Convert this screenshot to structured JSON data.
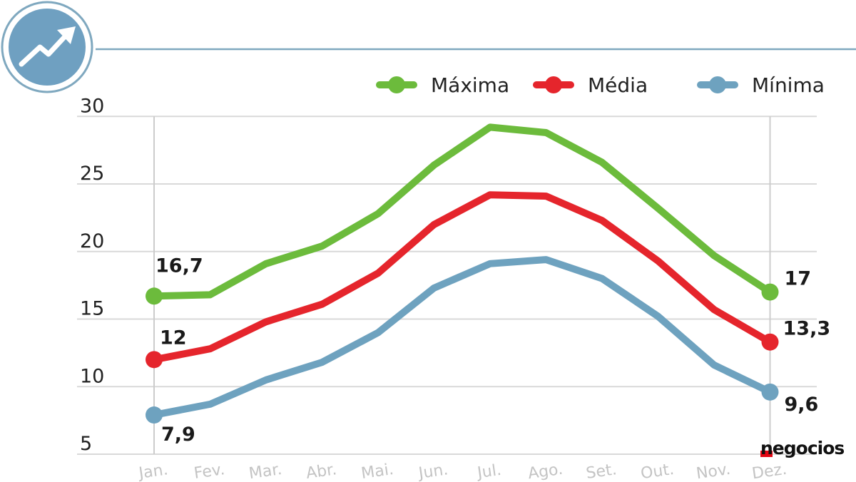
{
  "brand": {
    "name": "negocios",
    "accent_color": "#e30613"
  },
  "header": {
    "icon": "trend-up-arrow-icon",
    "badge_color": "#6fa0c1",
    "rule_color": "#7fa8bf"
  },
  "chart_data": {
    "type": "line",
    "title": "",
    "xlabel": "",
    "ylabel": "",
    "categories": [
      "Jan.",
      "Fev.",
      "Mar.",
      "Abr.",
      "Mai.",
      "Jun.",
      "Jul.",
      "Ago.",
      "Set.",
      "Out.",
      "Nov.",
      "Dez."
    ],
    "ylim": [
      5,
      30
    ],
    "yticks": [
      5,
      10,
      15,
      20,
      25,
      30
    ],
    "grid": true,
    "legend_position": "top-right",
    "series": [
      {
        "name": "Máxima",
        "color": "#6cbb3c",
        "values": [
          16.7,
          16.8,
          19.1,
          20.4,
          22.8,
          26.4,
          29.2,
          28.8,
          26.6,
          23.2,
          19.7,
          17.0
        ],
        "endpoint_labels": [
          "16,7",
          "17"
        ]
      },
      {
        "name": "Média",
        "color": "#e5252c",
        "values": [
          12.0,
          12.8,
          14.8,
          16.1,
          18.4,
          22.0,
          24.2,
          24.1,
          22.3,
          19.3,
          15.7,
          13.3
        ],
        "endpoint_labels": [
          "12",
          "13,3"
        ]
      },
      {
        "name": "Mínima",
        "color": "#6ea2bf",
        "values": [
          7.9,
          8.7,
          10.5,
          11.8,
          14.0,
          17.3,
          19.1,
          19.4,
          18.0,
          15.2,
          11.6,
          9.6
        ],
        "endpoint_labels": [
          "7,9",
          "9,6"
        ]
      }
    ]
  }
}
